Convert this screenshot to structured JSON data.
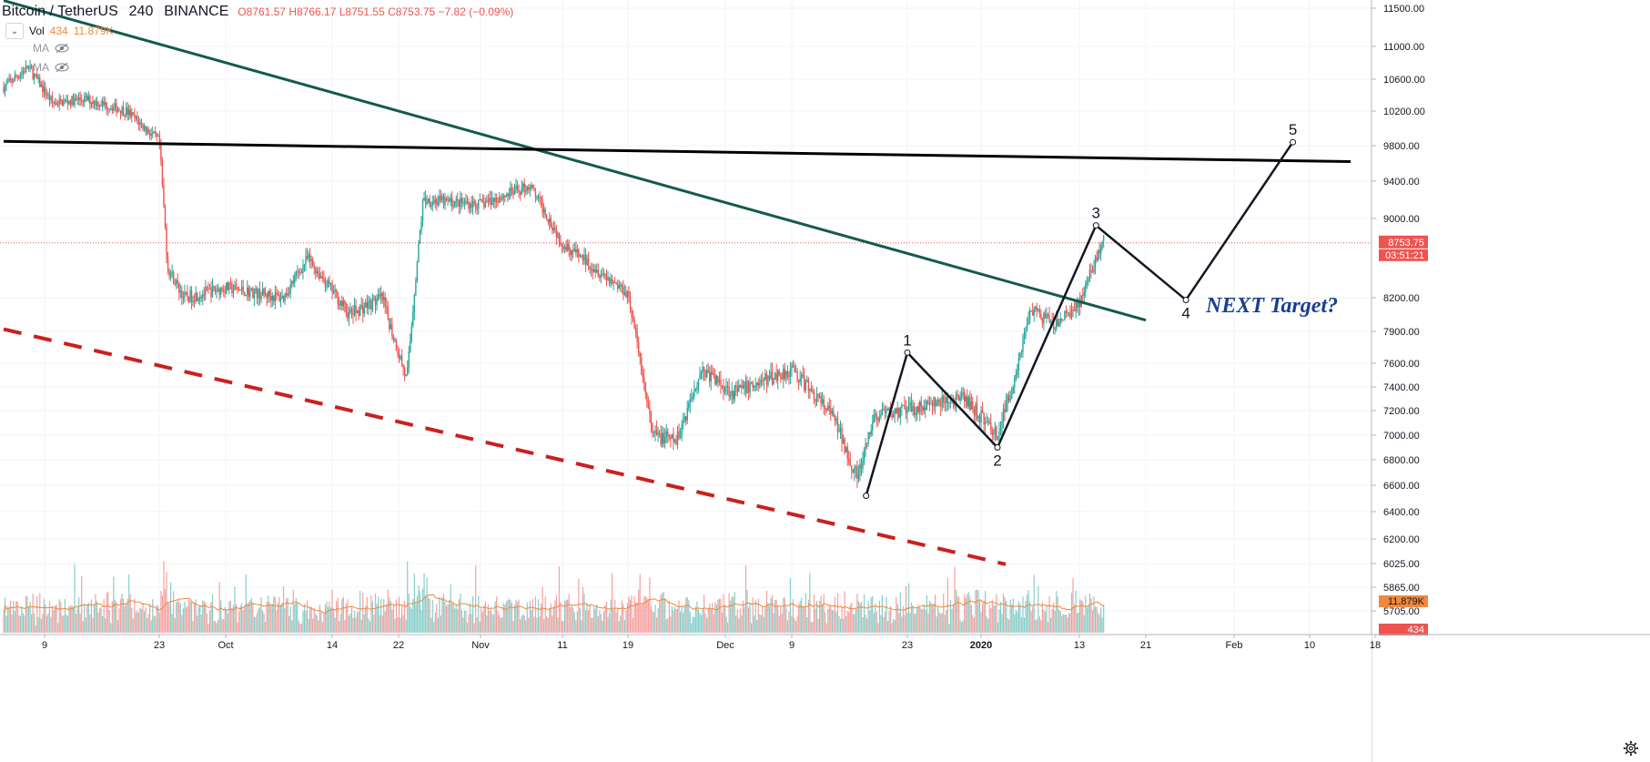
{
  "header": {
    "symbol": "Bitcoin / TetherUS",
    "interval": "240",
    "exchange": "BINANCE",
    "open": "O8761.57",
    "high": "H8766.17",
    "low": "L8751.55",
    "close": "C8753.75",
    "change": "−7.82 (−0.09%)"
  },
  "studies": {
    "vol_label": "Vol",
    "vol_value": "434",
    "vol_ma": "11.879K",
    "ma1_label": "MA",
    "ma2_label": "MA"
  },
  "colors": {
    "up": "#26a69a",
    "down": "#ef5350",
    "trend_green": "#145a4e",
    "trend_black": "#000000",
    "support_red": "#cc1f1f",
    "price_line": "#ef5350",
    "vol_ma": "#f0883e",
    "target_text": "#1a3f8f"
  },
  "price_axis": {
    "labels": [
      "11500.00",
      "11000.00",
      "10600.00",
      "10200.00",
      "9800.00",
      "9400.00",
      "9000.00",
      "8200.00",
      "7900.00",
      "7600.00",
      "7400.00",
      "7200.00",
      "7000.00",
      "6800.00",
      "6600.00",
      "6400.00",
      "6200.00",
      "6025.00",
      "5865.00",
      "5705.00"
    ],
    "current_price": "8753.75",
    "countdown": "03:51:21",
    "vol_ma_badge": "11.879K",
    "vol_badge": "434"
  },
  "time_axis": {
    "labels": [
      "9",
      "23",
      "Oct",
      "14",
      "22",
      "Nov",
      "11",
      "19",
      "Dec",
      "9",
      "23",
      "2020",
      "13",
      "21",
      "Feb",
      "10",
      "18"
    ]
  },
  "annotations": {
    "wave_labels": [
      "1",
      "2",
      "3",
      "4",
      "5"
    ],
    "target_text": "NEXT Target?"
  },
  "chart_data": {
    "type": "candlestick",
    "title": "",
    "xlabel": "",
    "ylabel": "",
    "ylim": [
      5600,
      11600
    ],
    "grid": true,
    "date_range": [
      "2019-09-04",
      "2020-01-16"
    ],
    "price_path": [
      {
        "date": "2019-09-04",
        "price": 10500
      },
      {
        "date": "2019-09-07",
        "price": 10750
      },
      {
        "date": "2019-09-10",
        "price": 10300
      },
      {
        "date": "2019-09-14",
        "price": 10350
      },
      {
        "date": "2019-09-19",
        "price": 10200
      },
      {
        "date": "2019-09-23",
        "price": 9850
      },
      {
        "date": "2019-09-24",
        "price": 8500
      },
      {
        "date": "2019-09-26",
        "price": 8200
      },
      {
        "date": "2019-10-01",
        "price": 8300
      },
      {
        "date": "2019-10-08",
        "price": 8200
      },
      {
        "date": "2019-10-11",
        "price": 8600
      },
      {
        "date": "2019-10-16",
        "price": 8050
      },
      {
        "date": "2019-10-20",
        "price": 8200
      },
      {
        "date": "2019-10-23",
        "price": 7450
      },
      {
        "date": "2019-10-25",
        "price": 9200
      },
      {
        "date": "2019-11-01",
        "price": 9150
      },
      {
        "date": "2019-11-07",
        "price": 9350
      },
      {
        "date": "2019-11-11",
        "price": 8750
      },
      {
        "date": "2019-11-19",
        "price": 8250
      },
      {
        "date": "2019-11-22",
        "price": 7000
      },
      {
        "date": "2019-11-25",
        "price": 6950
      },
      {
        "date": "2019-11-28",
        "price": 7550
      },
      {
        "date": "2019-12-02",
        "price": 7350
      },
      {
        "date": "2019-12-09",
        "price": 7550
      },
      {
        "date": "2019-12-14",
        "price": 7150
      },
      {
        "date": "2019-12-17",
        "price": 6650
      },
      {
        "date": "2019-12-19",
        "price": 7150
      },
      {
        "date": "2019-12-26",
        "price": 7250
      },
      {
        "date": "2019-12-30",
        "price": 7300
      },
      {
        "date": "2020-01-03",
        "price": 7000
      },
      {
        "date": "2020-01-05",
        "price": 7450
      },
      {
        "date": "2020-01-07",
        "price": 8100
      },
      {
        "date": "2020-01-10",
        "price": 7950
      },
      {
        "date": "2020-01-13",
        "price": 8150
      },
      {
        "date": "2020-01-16",
        "price": 8800
      }
    ],
    "volume_ma": 11879,
    "drawings": {
      "green_downtrend": [
        {
          "date": "2019-09-04",
          "price": 11600
        },
        {
          "date": "2020-01-21",
          "price": 8000
        }
      ],
      "black_resistance": [
        {
          "date": "2019-09-04",
          "price": 9850
        },
        {
          "date": "2020-02-15",
          "price": 9620
        }
      ],
      "red_support": [
        {
          "date": "2019-09-04",
          "price": 7920
        },
        {
          "date": "2020-01-04",
          "price": 6020
        }
      ],
      "wave_path": [
        {
          "label": "",
          "date": "2019-12-18",
          "price": 6520
        },
        {
          "label": "1",
          "date": "2019-12-23",
          "price": 7700
        },
        {
          "label": "2",
          "date": "2020-01-03",
          "price": 6900
        },
        {
          "label": "3",
          "date": "2020-01-15",
          "price": 8930
        },
        {
          "label": "4",
          "date": "2020-01-26",
          "price": 8180
        },
        {
          "label": "5",
          "date": "2020-02-08",
          "price": 9840
        }
      ]
    }
  }
}
